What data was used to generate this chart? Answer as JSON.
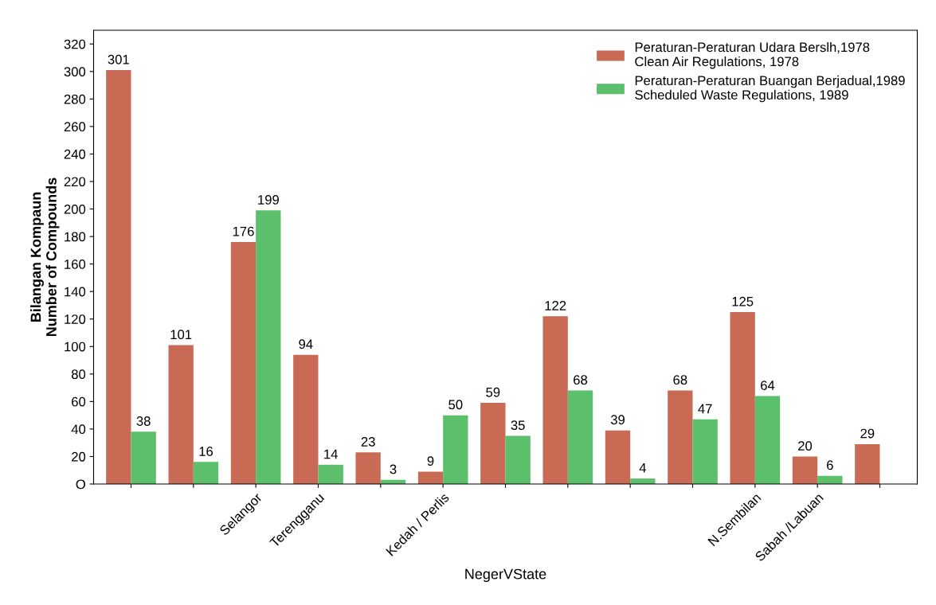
{
  "chart_data": {
    "type": "bar",
    "categories": [
      null,
      null,
      "Selangor",
      "Terengganu",
      null,
      "Kedah / Perlis",
      null,
      null,
      null,
      null,
      "N.Sembilan",
      "Sabah /Labuan",
      null
    ],
    "series": [
      {
        "name": "Peraturan-Peraturan Udara Berslh,1978\nClean Air Regulations, 1978",
        "color": "#c96a55",
        "values": [
          301,
          101,
          176,
          94,
          23,
          9,
          59,
          122,
          39,
          68,
          125,
          20,
          29
        ]
      },
      {
        "name": "Peraturan-Peraturan Buangan Berjadual,1989\nScheduled Waste Regulations, 1989",
        "color": "#5bbf6b",
        "values": [
          38,
          16,
          199,
          14,
          3,
          50,
          35,
          68,
          4,
          47,
          64,
          6,
          null
        ]
      }
    ],
    "ylabel": "Bilangan Kompaun\nNumber of Compounds",
    "xlabel": "NegerVState",
    "ylim": [
      0,
      330
    ],
    "yticks": [
      {
        "value": 0,
        "label": "O"
      },
      20,
      40,
      60,
      80,
      100,
      120,
      140,
      160,
      180,
      200,
      220,
      240,
      260,
      280,
      300,
      320
    ],
    "data_labels": true,
    "grid": false,
    "legend": "top right"
  }
}
